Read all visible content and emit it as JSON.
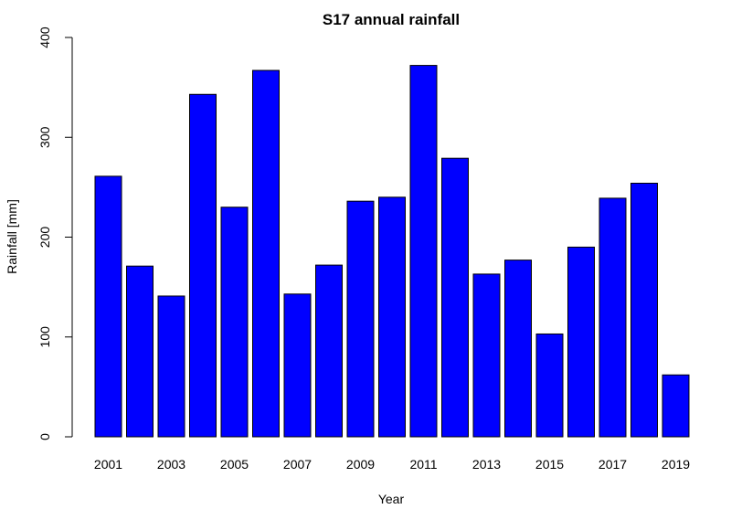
{
  "chart_data": {
    "type": "bar",
    "title": "S17 annual rainfall",
    "xlabel": "Year",
    "ylabel": "Rainfall [mm]",
    "ylim": [
      0,
      400
    ],
    "y_ticks": [
      0,
      100,
      200,
      300,
      400
    ],
    "categories": [
      "2001",
      "2002",
      "2003",
      "2004",
      "2005",
      "2006",
      "2007",
      "2008",
      "2009",
      "2010",
      "2011",
      "2012",
      "2013",
      "2014",
      "2015",
      "2016",
      "2017",
      "2018",
      "2019"
    ],
    "x_tick_labels": [
      "2001",
      "2003",
      "2005",
      "2007",
      "2009",
      "2011",
      "2013",
      "2015",
      "2017",
      "2019"
    ],
    "values": [
      261,
      171,
      141,
      343,
      230,
      367,
      143,
      172,
      236,
      240,
      372,
      279,
      163,
      177,
      103,
      190,
      239,
      254,
      62
    ],
    "bar_color": "#0000ff",
    "grid": false,
    "legend": "none"
  }
}
